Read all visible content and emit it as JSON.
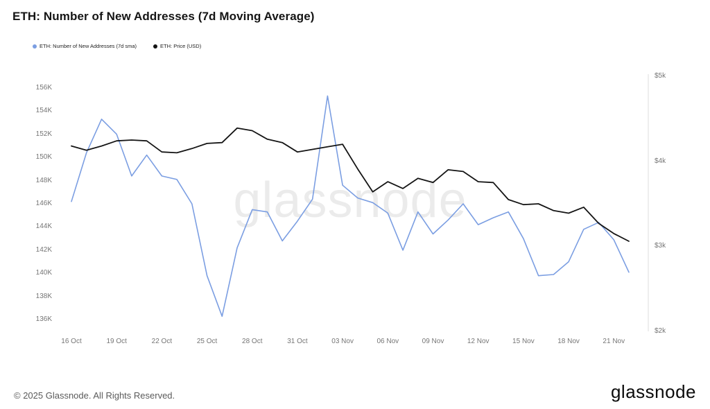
{
  "header": {
    "title": "ETH: Number of New Addresses (7d Moving Average)",
    "legend": [
      {
        "label": "ETH: Number of New Addresses (7d sma)",
        "color": "#7b9ee2"
      },
      {
        "label": "ETH: Price (USD)",
        "color": "#141414"
      }
    ]
  },
  "watermark": "glassnode",
  "footer": {
    "copyright": "© 2025 Glassnode. All Rights Reserved.",
    "brand": "glassnode"
  },
  "chart_data": {
    "type": "line",
    "title": "ETH: Number of New Addresses (7d Moving Average)",
    "grid": false,
    "legend_position": "top-left",
    "x": [
      "16 Oct",
      "17 Oct",
      "18 Oct",
      "19 Oct",
      "20 Oct",
      "21 Oct",
      "22 Oct",
      "23 Oct",
      "24 Oct",
      "25 Oct",
      "26 Oct",
      "27 Oct",
      "28 Oct",
      "29 Oct",
      "30 Oct",
      "31 Oct",
      "01 Nov",
      "02 Nov",
      "03 Nov",
      "04 Nov",
      "05 Nov",
      "06 Nov",
      "07 Nov",
      "08 Nov",
      "09 Nov",
      "10 Nov",
      "11 Nov",
      "12 Nov",
      "13 Nov",
      "14 Nov",
      "15 Nov",
      "16 Nov",
      "17 Nov",
      "18 Nov",
      "19 Nov",
      "20 Nov",
      "21 Nov",
      "22 Nov"
    ],
    "series": [
      {
        "name": "ETH: Number of New Addresses (7d sma)",
        "axis": "left",
        "color": "#7b9ee2",
        "unit": "addresses (K)",
        "values": [
          146.2,
          150.4,
          153.3,
          152.0,
          148.4,
          150.2,
          148.4,
          148.1,
          146.0,
          139.8,
          136.3,
          142.2,
          145.5,
          145.3,
          142.8,
          144.5,
          146.4,
          155.3,
          147.6,
          146.5,
          146.1,
          145.2,
          142.0,
          145.3,
          143.4,
          144.6,
          146.0,
          144.2,
          144.8,
          145.3,
          143.0,
          139.8,
          139.9,
          141.0,
          143.8,
          144.4,
          142.9,
          140.1
        ]
      },
      {
        "name": "ETH: Price (USD)",
        "axis": "right",
        "color": "#141414",
        "unit": "USD (k)",
        "values": [
          4.18,
          4.13,
          4.18,
          4.24,
          4.25,
          4.24,
          4.11,
          4.1,
          4.15,
          4.21,
          4.22,
          4.39,
          4.36,
          4.26,
          4.22,
          4.11,
          4.14,
          4.17,
          4.2,
          3.91,
          3.64,
          3.76,
          3.68,
          3.8,
          3.75,
          3.9,
          3.88,
          3.76,
          3.75,
          3.55,
          3.49,
          3.5,
          3.42,
          3.39,
          3.46,
          3.27,
          3.15,
          3.06
        ]
      }
    ],
    "left_axis": {
      "ticks": [
        "136K",
        "138K",
        "140K",
        "142K",
        "144K",
        "146K",
        "148K",
        "150K",
        "152K",
        "154K",
        "156K"
      ],
      "tick_values": [
        136,
        138,
        140,
        142,
        144,
        146,
        148,
        150,
        152,
        154,
        156
      ],
      "range": [
        135,
        157
      ]
    },
    "right_axis": {
      "ticks": [
        "$2k",
        "$3k",
        "$4k",
        "$5k"
      ],
      "tick_values": [
        2,
        3,
        4,
        5
      ],
      "range": [
        2,
        5
      ]
    },
    "x_tick_indices": [
      0,
      3,
      6,
      9,
      12,
      15,
      18,
      21,
      24,
      27,
      30,
      33,
      36
    ],
    "x_tick_labels": [
      "16 Oct",
      "19 Oct",
      "22 Oct",
      "25 Oct",
      "28 Oct",
      "31 Oct",
      "03 Nov",
      "06 Nov",
      "09 Nov",
      "12 Nov",
      "15 Nov",
      "18 Nov",
      "21 Nov"
    ]
  }
}
